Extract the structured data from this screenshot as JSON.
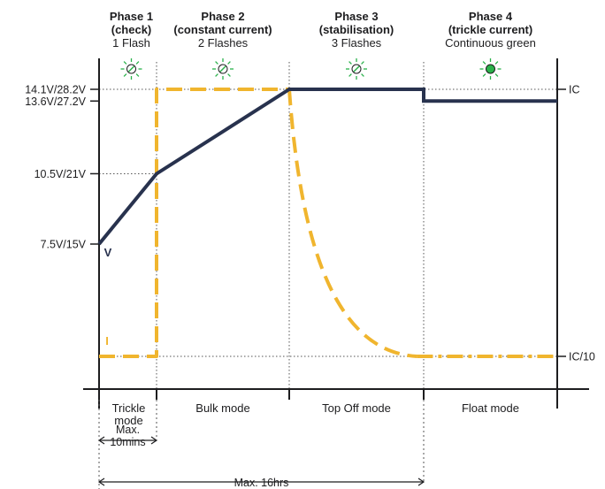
{
  "chart_data": {
    "type": "line",
    "phases": [
      {
        "title": "Phase 1",
        "subtitle": "(check)",
        "flash": "1 Flash",
        "led": "flashing-green",
        "mode": "Trickle\nmode",
        "x_start": 0,
        "x_end": 1
      },
      {
        "title": "Phase 2",
        "subtitle": "(constant current)",
        "flash": "2 Flashes",
        "led": "flashing-green",
        "mode": "Bulk mode",
        "x_start": 1,
        "x_end": 2
      },
      {
        "title": "Phase 3",
        "subtitle": "(stabilisation)",
        "flash": "3 Flashes",
        "led": "flashing-green",
        "mode": "Top Off mode",
        "x_start": 2,
        "x_end": 3
      },
      {
        "title": "Phase 4",
        "subtitle": "(trickle current)",
        "flash": "Continuous green",
        "led": "solid-green",
        "mode": "Float mode",
        "x_start": 3,
        "x_end": 4
      }
    ],
    "y_ticks_left": [
      {
        "label": "14.1V/28.2V",
        "value": 14.1
      },
      {
        "label": "13.6V/27.2V",
        "value": 13.6
      },
      {
        "label": "10.5V/21V",
        "value": 10.5
      },
      {
        "label": "7.5V/15V",
        "value": 7.5
      }
    ],
    "y_ticks_right": [
      {
        "label": "IC",
        "value": 1.0
      },
      {
        "label": "IC/10",
        "value": 0.1
      }
    ],
    "voltage_series": {
      "name": "V",
      "color": "#28324e",
      "points": [
        [
          0,
          7.5
        ],
        [
          1,
          10.5
        ],
        [
          2,
          14.1
        ],
        [
          3,
          14.1
        ],
        [
          3,
          13.6
        ],
        [
          4,
          13.6
        ]
      ]
    },
    "current_series": {
      "name": "I",
      "color": "#f0b52e",
      "points": [
        [
          0,
          0.1
        ],
        [
          1,
          0.1
        ],
        [
          1,
          1.0
        ],
        [
          2,
          1.0
        ]
      ],
      "decay": {
        "from": [
          2,
          1.0
        ],
        "to": [
          2.95,
          0.1
        ]
      },
      "tail": [
        [
          2.95,
          0.1
        ],
        [
          4,
          0.1
        ]
      ]
    },
    "durations": [
      {
        "label": "Max.\n10mins",
        "from": 0,
        "to": 1
      },
      {
        "label": "Max. 16hrs",
        "from": 0,
        "to": 3
      }
    ],
    "colors": {
      "voltage": "#28324e",
      "current": "#f0b52e",
      "led_green": "#2ab24a",
      "axis": "#1d1d1f",
      "guide": "#555555"
    }
  }
}
